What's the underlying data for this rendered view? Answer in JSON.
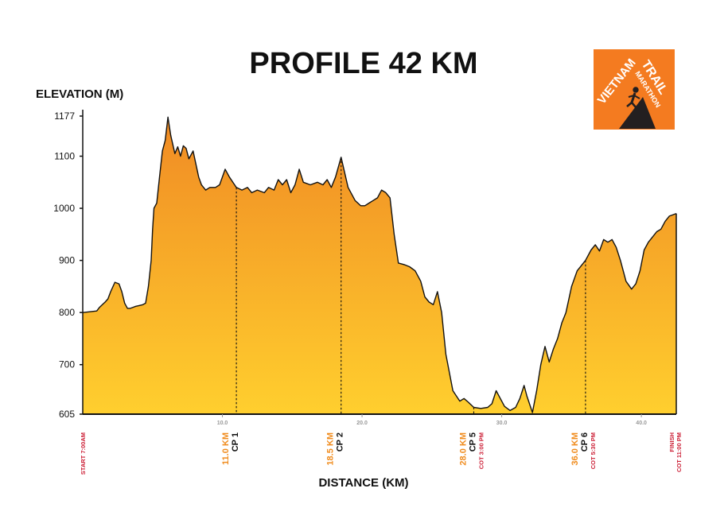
{
  "chart_data": {
    "type": "area",
    "title": "PROFILE 42 KM",
    "xlabel": "DISTANCE (KM)",
    "ylabel": "ELEVATION (M)",
    "xlim": [
      0,
      42.5
    ],
    "ylim": [
      605,
      1177
    ],
    "yticks": [
      605,
      700,
      800,
      900,
      1000,
      1100,
      1177
    ],
    "xticks": [
      {
        "value": 10,
        "label": "10.0"
      },
      {
        "value": 20,
        "label": "20.0"
      },
      {
        "value": 30,
        "label": "30.0"
      },
      {
        "value": 40,
        "label": "40.0"
      }
    ],
    "series": [
      {
        "x": [
          0,
          1.0,
          1.2,
          1.6,
          1.8,
          2.0,
          2.3,
          2.6,
          2.8,
          3.0,
          3.2,
          3.4,
          3.6,
          3.8,
          4.0,
          4.3,
          4.5,
          4.7,
          4.9,
          5.0,
          5.1,
          5.3,
          5.5,
          5.7,
          5.9,
          6.1,
          6.3,
          6.6,
          6.8,
          7.0,
          7.2,
          7.4,
          7.6,
          7.9,
          8.1,
          8.3,
          8.5,
          8.8,
          9.1,
          9.5,
          9.8,
          10.2,
          10.5,
          10.8,
          11.0,
          11.4,
          11.8,
          12.1,
          12.5,
          13.0,
          13.3,
          13.7,
          14.0,
          14.3,
          14.6,
          14.9,
          15.2,
          15.5,
          15.8,
          16.3,
          16.8,
          17.2,
          17.5,
          17.8,
          18.1,
          18.5,
          19.0,
          19.5,
          19.9,
          20.2,
          20.5,
          20.8,
          21.1,
          21.4,
          21.7,
          22.0,
          22.3,
          22.6,
          23.0,
          23.4,
          23.8,
          24.2,
          24.5,
          24.8,
          25.1,
          25.4,
          25.7,
          26.0,
          26.5,
          27.0,
          27.3,
          27.6,
          28.0,
          28.5,
          29.0,
          29.3,
          29.6,
          29.8,
          30.2,
          30.6,
          31.0,
          31.3,
          31.6,
          31.8,
          32.2,
          32.5,
          32.8,
          33.1,
          33.4,
          33.7,
          34.0,
          34.3,
          34.6,
          35.0,
          35.4,
          35.7,
          36.0,
          36.4,
          36.7,
          37.0,
          37.3,
          37.6,
          37.9,
          38.2,
          38.5,
          38.9,
          39.3,
          39.6,
          39.9,
          40.2,
          40.5,
          40.8,
          41.1,
          41.4,
          41.7,
          42.0,
          42.5
        ],
        "y": [
          800,
          803,
          810,
          820,
          826,
          840,
          858,
          855,
          840,
          818,
          808,
          808,
          810,
          812,
          813,
          815,
          818,
          850,
          900,
          960,
          1000,
          1010,
          1060,
          1110,
          1130,
          1175,
          1140,
          1105,
          1118,
          1100,
          1120,
          1115,
          1095,
          1110,
          1085,
          1060,
          1045,
          1035,
          1040,
          1040,
          1045,
          1075,
          1060,
          1048,
          1040,
          1035,
          1040,
          1030,
          1035,
          1030,
          1040,
          1035,
          1055,
          1045,
          1055,
          1030,
          1045,
          1075,
          1050,
          1045,
          1050,
          1045,
          1055,
          1040,
          1060,
          1098,
          1040,
          1015,
          1005,
          1005,
          1010,
          1015,
          1020,
          1035,
          1030,
          1020,
          950,
          895,
          892,
          888,
          880,
          860,
          830,
          820,
          815,
          840,
          800,
          720,
          650,
          630,
          635,
          628,
          618,
          616,
          618,
          625,
          650,
          640,
          620,
          612,
          618,
          635,
          660,
          640,
          608,
          650,
          700,
          735,
          705,
          730,
          750,
          780,
          800,
          850,
          880,
          890,
          900,
          920,
          930,
          918,
          940,
          935,
          940,
          925,
          900,
          860,
          845,
          855,
          880,
          920,
          935,
          945,
          955,
          960,
          975,
          985,
          990
        ]
      }
    ],
    "checkpoints": [
      {
        "x": 0,
        "label": "START 7:00AM",
        "color": "#cc1f36"
      },
      {
        "x": 11.0,
        "label": "CP 1",
        "distance": "11.0 KM",
        "color": "#111111",
        "distance_color": "#f08c1e"
      },
      {
        "x": 18.5,
        "label": "CP 2",
        "distance": "18.5 KM",
        "color": "#111111",
        "distance_color": "#f08c1e"
      },
      {
        "x": 28.0,
        "label": "CP 5",
        "distance": "28.0 KM",
        "cot": "COT 3:00 PM",
        "color": "#111111",
        "distance_color": "#f08c1e",
        "cot_color": "#cc1f36"
      },
      {
        "x": 36.0,
        "label": "CP 6",
        "distance": "36.0 KM",
        "cot": "COT 5:30 PM",
        "color": "#111111",
        "distance_color": "#f08c1e",
        "cot_color": "#cc1f36"
      },
      {
        "x": 42.5,
        "label": "FINISH",
        "cot": "COT 11:00 PM",
        "color": "#cc1f36",
        "cot_color": "#cc1f36"
      }
    ],
    "fill_colors": {
      "top": "#f08a24",
      "bottom": "#ffcf2e"
    },
    "grid": false
  },
  "logo": {
    "line1": "VIETNAM",
    "line2": "TRAIL",
    "line3": "MARATHON",
    "background": "#f47b20"
  }
}
